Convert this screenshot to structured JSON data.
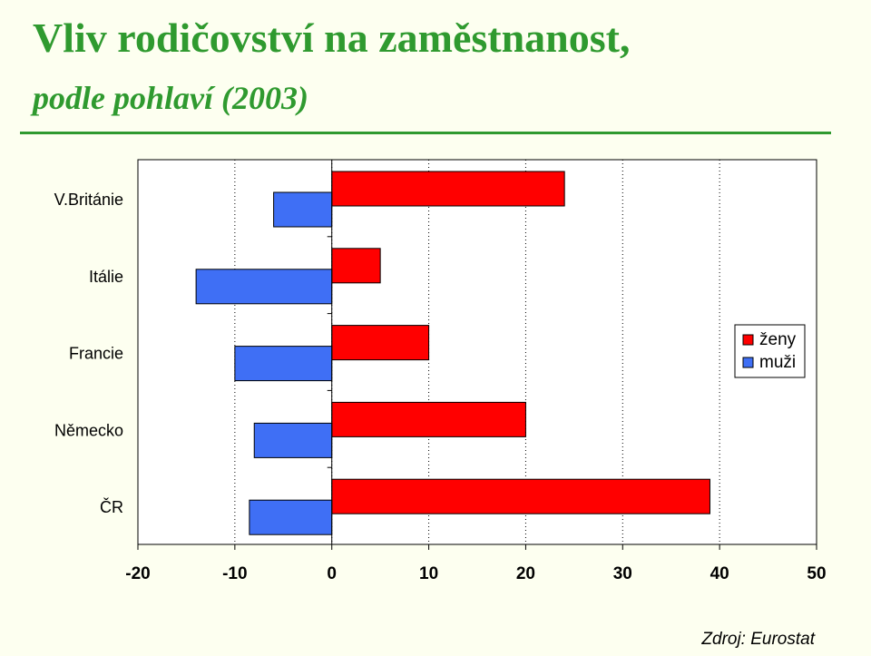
{
  "title": "Vliv rodičovství na zaměstnanost,",
  "subtitle": "podle pohlaví (2003)",
  "source": "Zdroj: Eurostat",
  "colors": {
    "title_green": "#2f9a2f",
    "zeny": "#ff0000",
    "muzi": "#3f6ff5",
    "background": "#fdfff0"
  },
  "chart_data": {
    "type": "bar",
    "orientation": "horizontal",
    "categories": [
      "V.Británie",
      "Itálie",
      "Francie",
      "Německo",
      "ČR"
    ],
    "series": [
      {
        "name": "ženy",
        "values": [
          24,
          5,
          10,
          20,
          39
        ]
      },
      {
        "name": "muži",
        "values": [
          -6,
          -14,
          -10,
          -8,
          -8.5
        ]
      }
    ],
    "x_ticks": [
      -20,
      -10,
      0,
      10,
      20,
      30,
      40,
      50
    ],
    "x_tick_labels": [
      "-20",
      "-10",
      "0",
      "10",
      "20",
      "30",
      "40",
      "50"
    ],
    "xlim": [
      -20,
      50
    ],
    "grid": "vertical dotted",
    "legend_position": "right"
  }
}
